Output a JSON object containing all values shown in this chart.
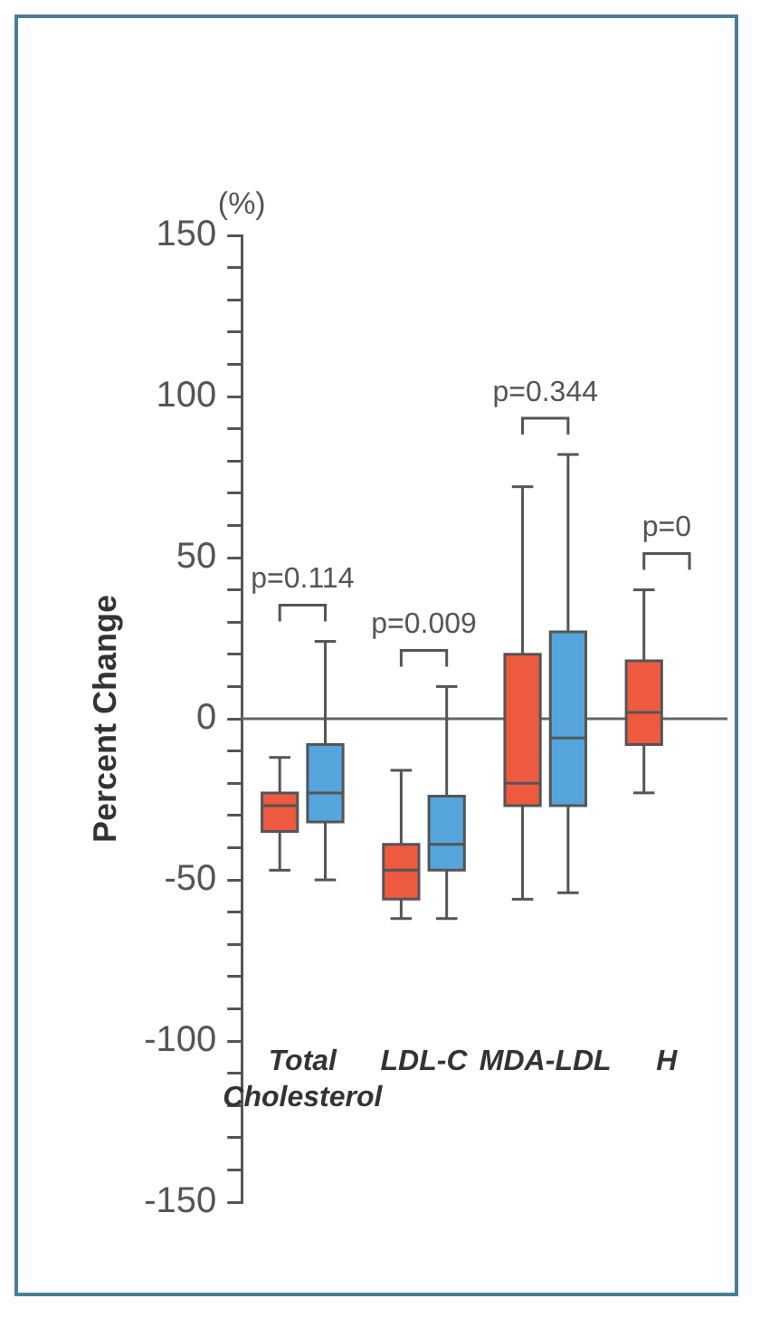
{
  "chart_data": {
    "type": "box",
    "categories": [
      "Total Cholesterol",
      "LDL-C",
      "MDA-LDL",
      "H"
    ],
    "series": [
      {
        "color": "#ee5a40",
        "boxes": [
          {
            "low": -47,
            "q1": -35,
            "median": -27,
            "q3": -23,
            "high": -12
          },
          {
            "low": -62,
            "q1": -56,
            "median": -47,
            "q3": -39,
            "high": -16
          },
          {
            "low": -56,
            "q1": -27,
            "median": -20,
            "q3": 20,
            "high": 72
          },
          {
            "low": -23,
            "q1": -8,
            "median": 2,
            "q3": 18,
            "high": 40
          }
        ]
      },
      {
        "color": "#55a5dc",
        "boxes": [
          {
            "low": -50,
            "q1": -32,
            "median": -23,
            "q3": -8,
            "high": 24
          },
          {
            "low": -62,
            "q1": -47,
            "median": -39,
            "q3": -24,
            "high": 10
          },
          {
            "low": -54,
            "q1": -27,
            "median": -6,
            "q3": 27,
            "high": 82
          },
          null
        ]
      }
    ],
    "ylabel": "Percent Change",
    "ylim": [
      -150,
      150
    ],
    "yticks": [
      -150,
      {
        "value": -140,
        "label": null
      },
      {
        "value": -130,
        "label": null
      },
      {
        "value": -120,
        "label": null
      },
      {
        "value": -110,
        "label": null
      },
      -100,
      {
        "value": -90,
        "label": null
      },
      {
        "value": -80,
        "label": null
      },
      {
        "value": -70,
        "label": null
      },
      {
        "value": -60,
        "label": null
      },
      -50,
      {
        "value": -40,
        "label": null
      },
      {
        "value": -30,
        "label": null
      },
      {
        "value": -20,
        "label": null
      },
      {
        "value": -10,
        "label": null
      },
      0,
      {
        "value": 10,
        "label": null
      },
      {
        "value": 20,
        "label": null
      },
      {
        "value": 30,
        "label": null
      },
      {
        "value": 40,
        "label": null
      },
      50,
      {
        "value": 60,
        "label": null
      },
      {
        "value": 70,
        "label": null
      },
      {
        "value": 80,
        "label": null
      },
      {
        "value": 90,
        "label": null
      },
      100,
      {
        "value": 110,
        "label": null
      },
      {
        "value": 120,
        "label": null
      },
      {
        "value": 130,
        "label": null
      },
      {
        "value": 140,
        "label": null
      },
      150
    ],
    "ref_lines": [
      {
        "axis": "y",
        "value": 0,
        "color": "#666666"
      }
    ],
    "annotations": [
      "(%)",
      "p=0.114",
      "p=0.009",
      "p=0.344",
      "p=0"
    ]
  }
}
